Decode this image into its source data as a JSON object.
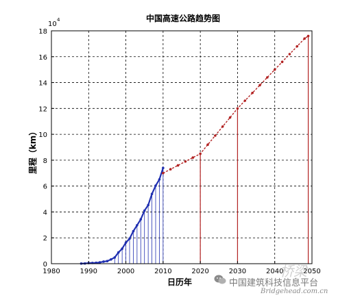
{
  "chart_data": {
    "type": "line",
    "title": "中国高速公路趋势图",
    "xlabel": "日历年",
    "ylabel": "里程（km）",
    "y_exponent_label": "10",
    "y_exponent_power": "4",
    "xlim": [
      1980,
      2050
    ],
    "ylim": [
      0,
      18
    ],
    "x_ticks": [
      1980,
      1990,
      2000,
      2010,
      2020,
      2030,
      2040,
      2050
    ],
    "y_ticks": [
      0,
      2,
      4,
      6,
      8,
      10,
      12,
      14,
      16,
      18
    ],
    "grid": true,
    "series": [
      {
        "color": "#1f2fb0",
        "x": [
          1988,
          1989,
          1990,
          1991,
          1992,
          1993,
          1994,
          1995,
          1996,
          1997,
          1998,
          1999,
          2000,
          2001,
          2002,
          2003,
          2004,
          2005,
          2006,
          2007,
          2008,
          2009,
          2010
        ],
        "y": [
          0.01,
          0.02,
          0.05,
          0.06,
          0.07,
          0.1,
          0.16,
          0.2,
          0.33,
          0.48,
          0.87,
          1.16,
          1.63,
          1.94,
          2.51,
          2.97,
          3.43,
          4.1,
          4.53,
          5.39,
          6.03,
          6.51,
          7.4
        ]
      },
      {
        "color": "#b22222",
        "x": [
          2010,
          2012,
          2014,
          2016,
          2018,
          2020,
          2022,
          2024,
          2026,
          2028,
          2030,
          2032,
          2034,
          2036,
          2038,
          2040,
          2042,
          2044,
          2046,
          2048,
          2049
        ],
        "y": [
          7.0,
          7.3,
          7.6,
          7.9,
          8.2,
          8.5,
          9.2,
          9.9,
          10.6,
          11.3,
          12.0,
          12.6,
          13.2,
          13.8,
          14.4,
          15.0,
          15.6,
          16.2,
          16.8,
          17.4,
          17.6
        ]
      }
    ],
    "reference_lines": [
      {
        "x": 2020,
        "y": 8.5
      },
      {
        "x": 2030,
        "y": 12.0
      },
      {
        "x": 2049,
        "y": 17.6
      }
    ]
  },
  "watermark": {
    "text": "中国建筑科技信息平台",
    "url": "Bridgehead.com.cn",
    "seal": "桥梁"
  },
  "colors": {
    "background": "#ffffff",
    "historical": "#1f2fb0",
    "forecast": "#b22222",
    "grid": "#000000"
  }
}
